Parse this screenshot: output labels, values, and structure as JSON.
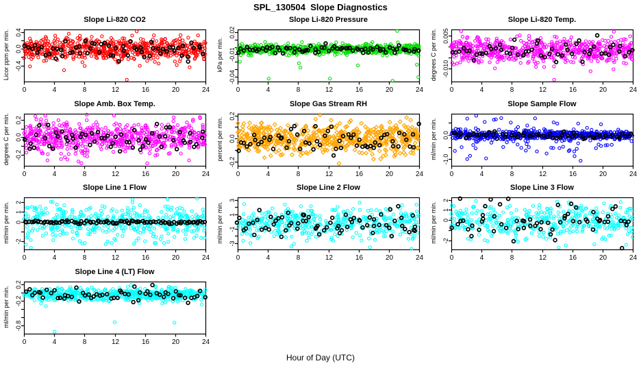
{
  "page": {
    "title": "SPL_130504  Slope Diagnostics",
    "xlabel": "Hour of Day (UTC)",
    "background": "#FFFFFF",
    "text_color": "#000000"
  },
  "axes_common": {
    "x_min": 0,
    "x_max": 24,
    "x_ticks": [
      0,
      4,
      8,
      12,
      16,
      20,
      24
    ],
    "grid": false,
    "box": true
  },
  "chart_data": [
    {
      "type": "scatter",
      "row": 0,
      "col": 0,
      "seed": 101,
      "title": "Slope Li-820 CO2",
      "ylabel": "Licor ppm per min.",
      "ylim": [
        -0.78,
        0.46
      ],
      "yticks": [
        {
          "v": 0.4,
          "label": "0.4"
        },
        {
          "v": 0.2,
          "label": ""
        },
        {
          "v": 0.0,
          "label": "0.0"
        },
        {
          "v": -0.2,
          "label": ""
        },
        {
          "v": -0.4,
          "label": "-0.4"
        }
      ],
      "series": [
        {
          "name": "samples",
          "marker": "circle",
          "color": "#FF0000",
          "n": 620,
          "y_mean": 0.0,
          "y_sd": 0.14,
          "x_dist": "uniform"
        },
        {
          "name": "overlay-black",
          "marker": "circle-bold",
          "color": "#000000",
          "n": 62,
          "y_mean": -0.01,
          "y_sd": 0.11,
          "x_dist": "even",
          "x_jitter": 0.4
        }
      ],
      "outliers": [
        {
          "x": 13.6,
          "y": -0.74
        },
        {
          "x": 5.3,
          "y": -0.51
        },
        {
          "x": 21.9,
          "y": -0.44
        },
        {
          "x": 0.8,
          "y": -0.42
        }
      ]
    },
    {
      "type": "scatter",
      "row": 0,
      "col": 1,
      "seed": 102,
      "title": "Slope Li-820 Pressure",
      "ylabel": "kPa per min.",
      "ylim": [
        -0.047,
        0.024
      ],
      "yticks": [
        {
          "v": 0.02,
          "label": "0.02"
        },
        {
          "v": 0.01,
          "label": ""
        },
        {
          "v": 0.0,
          "label": ""
        },
        {
          "v": -0.01,
          "label": "-0.01"
        },
        {
          "v": -0.02,
          "label": ""
        },
        {
          "v": -0.03,
          "label": ""
        },
        {
          "v": -0.04,
          "label": "-0.04"
        }
      ],
      "series": [
        {
          "name": "samples",
          "marker": "circle",
          "color": "#00DD00",
          "n": 600,
          "y_mean": -0.003,
          "y_sd": 0.0035,
          "x_dist": "uniform"
        },
        {
          "name": "overlay-black",
          "marker": "circle-bold",
          "color": "#000000",
          "n": 70,
          "y_mean": -0.003,
          "y_sd": 0.0028,
          "x_dist": "even",
          "x_jitter": 0.4
        }
      ],
      "outliers": [
        {
          "x": 0.3,
          "y": -0.02
        },
        {
          "x": 4.1,
          "y": -0.043
        },
        {
          "x": 8.1,
          "y": -0.022
        },
        {
          "x": 8.3,
          "y": -0.028
        },
        {
          "x": 12.2,
          "y": -0.043
        },
        {
          "x": 15.9,
          "y": -0.025
        },
        {
          "x": 20.5,
          "y": -0.046
        },
        {
          "x": 21.1,
          "y": 0.022
        },
        {
          "x": 23.7,
          "y": -0.024
        },
        {
          "x": 23.9,
          "y": -0.041
        }
      ]
    },
    {
      "type": "scatter",
      "row": 0,
      "col": 2,
      "seed": 103,
      "title": "Slope Li-820 Temp.",
      "ylabel": "degrees C per min.",
      "ylim": [
        -0.016,
        0.0078
      ],
      "yticks": [
        {
          "v": 0.005,
          "label": "0.005"
        },
        {
          "v": 0.0,
          "label": ""
        },
        {
          "v": -0.005,
          "label": ""
        },
        {
          "v": -0.01,
          "label": "-0.010"
        }
      ],
      "series": [
        {
          "name": "samples",
          "marker": "circle",
          "color": "#FF00FF",
          "n": 600,
          "y_mean": -0.0018,
          "y_sd": 0.0028,
          "x_dist": "uniform"
        },
        {
          "name": "overlay-black",
          "marker": "circle-bold",
          "color": "#000000",
          "n": 55,
          "y_mean": -0.0018,
          "y_sd": 0.0024,
          "x_dist": "even",
          "x_jitter": 0.4
        }
      ],
      "outliers": [
        {
          "x": 13.6,
          "y": -0.0152
        },
        {
          "x": 1.3,
          "y": 0.007
        },
        {
          "x": 21.5,
          "y": 0.0068
        }
      ]
    },
    {
      "type": "scatter",
      "row": 1,
      "col": 0,
      "seed": 104,
      "title": "Slope Amb. Box Temp.",
      "ylabel": "degrees C per min.",
      "ylim": [
        -0.33,
        0.27
      ],
      "yticks": [
        {
          "v": 0.2,
          "label": "0.2"
        },
        {
          "v": 0.1,
          "label": ""
        },
        {
          "v": 0.0,
          "label": "0.0"
        },
        {
          "v": -0.1,
          "label": ""
        },
        {
          "v": -0.2,
          "label": "-0.2"
        }
      ],
      "series": [
        {
          "name": "samples",
          "marker": "circle",
          "color": "#FF00FF",
          "n": 620,
          "y_mean": -0.01,
          "y_sd": 0.09,
          "x_dist": "uniform"
        },
        {
          "name": "overlay-black",
          "marker": "circle-bold",
          "color": "#000000",
          "n": 60,
          "y_mean": -0.02,
          "y_sd": 0.08,
          "x_dist": "even",
          "x_jitter": 0.4
        }
      ],
      "outliers": [
        {
          "x": 7.2,
          "y": -0.28
        },
        {
          "x": 7.6,
          "y": -0.3
        },
        {
          "x": 16.3,
          "y": -0.3
        },
        {
          "x": 8.3,
          "y": 0.26
        },
        {
          "x": 11.9,
          "y": 0.25
        },
        {
          "x": 1.5,
          "y": 0.24
        },
        {
          "x": 23.3,
          "y": 0.22
        }
      ]
    },
    {
      "type": "scatter",
      "row": 1,
      "col": 1,
      "seed": 105,
      "title": "Slope Gas Stream RH",
      "ylabel": "percent per min.",
      "ylim": [
        -0.235,
        0.215
      ],
      "yticks": [
        {
          "v": 0.2,
          "label": "0.2"
        },
        {
          "v": 0.1,
          "label": ""
        },
        {
          "v": 0.0,
          "label": "0.0"
        },
        {
          "v": -0.1,
          "label": ""
        },
        {
          "v": -0.2,
          "label": "-0.2"
        }
      ],
      "series": [
        {
          "name": "samples",
          "marker": "diamond",
          "color": "#FFA500",
          "n": 560,
          "y_mean": 0.0,
          "y_sd": 0.065,
          "x_dist": "uniform"
        },
        {
          "name": "overlay-black",
          "marker": "circle-bold",
          "color": "#000000",
          "n": 62,
          "y_mean": -0.01,
          "y_sd": 0.06,
          "x_dist": "even",
          "x_jitter": 0.4
        }
      ],
      "outliers": [
        {
          "x": 10.9,
          "y": 0.205
        },
        {
          "x": 13.4,
          "y": -0.215
        }
      ]
    },
    {
      "type": "scatter",
      "row": 1,
      "col": 2,
      "seed": 106,
      "title": "Slope Sample Flow",
      "ylabel": "ml/min per min.",
      "ylim": [
        -1.28,
        0.88
      ],
      "yticks": [
        {
          "v": 0.5,
          "label": ""
        },
        {
          "v": 0.0,
          "label": "0.0"
        },
        {
          "v": -0.5,
          "label": ""
        },
        {
          "v": -1.0,
          "label": "-1.0"
        }
      ],
      "series": [
        {
          "name": "samples",
          "marker": "circle",
          "color": "#0000FF",
          "n": 520,
          "y_mean": 0.0,
          "y_sd": 0.09,
          "x_dist": "uniform"
        },
        {
          "name": "samples-spread",
          "marker": "circle",
          "color": "#0000FF",
          "n": 90,
          "y_mean": -0.12,
          "y_sd": 0.38,
          "x_dist": "uniform"
        },
        {
          "name": "overlay-black",
          "marker": "circle-bold",
          "color": "#000000",
          "n": 60,
          "y_mean": -0.02,
          "y_sd": 0.07,
          "x_dist": "even",
          "x_jitter": 0.4
        }
      ],
      "outliers": [
        {
          "x": 3.3,
          "y": 0.8
        },
        {
          "x": 2.1,
          "y": -1.0
        },
        {
          "x": 4.6,
          "y": -0.97
        },
        {
          "x": 16.3,
          "y": -0.88
        },
        {
          "x": 17.1,
          "y": -1.07
        },
        {
          "x": 12.6,
          "y": -0.77
        },
        {
          "x": 5.9,
          "y": 0.65
        },
        {
          "x": 6.6,
          "y": 0.7
        }
      ]
    },
    {
      "type": "scatter",
      "row": 2,
      "col": 0,
      "seed": 107,
      "title": "Slope Line 1 Flow",
      "ylabel": "ml/min per min.",
      "ylim": [
        -2.83,
        2.5
      ],
      "yticks": [
        {
          "v": 2,
          "label": "2"
        },
        {
          "v": 1,
          "label": "1"
        },
        {
          "v": 0,
          "label": "0"
        },
        {
          "v": -1,
          "label": ""
        },
        {
          "v": -2,
          "label": "-2"
        }
      ],
      "series": [
        {
          "name": "samples",
          "marker": "circle",
          "color": "#00FFFF",
          "n": 430,
          "y_mean": 0.0,
          "y_sd": 0.95,
          "x_dist": "uniform"
        },
        {
          "name": "overlay-black",
          "marker": "circle-bold",
          "color": "#000000",
          "n": 90,
          "y_mean": -0.05,
          "y_sd": 0.09,
          "x_dist": "even",
          "x_jitter": 0.3
        }
      ],
      "outliers": []
    },
    {
      "type": "scatter",
      "row": 2,
      "col": 1,
      "seed": 108,
      "title": "Slope Line 2 Flow",
      "ylabel": "ml/min per min.",
      "ylim": [
        -3.9,
        3.35
      ],
      "yticks": [
        {
          "v": 3,
          "label": "3"
        },
        {
          "v": 2,
          "label": ""
        },
        {
          "v": 1,
          "label": "1"
        },
        {
          "v": 0,
          "label": ""
        },
        {
          "v": -1,
          "label": "-1"
        },
        {
          "v": -2,
          "label": ""
        },
        {
          "v": -3,
          "label": "-3"
        }
      ],
      "series": [
        {
          "name": "samples",
          "marker": "circle",
          "color": "#00FFFF",
          "n": 430,
          "y_mean": -0.2,
          "y_sd": 1.05,
          "x_dist": "uniform"
        },
        {
          "name": "overlay-black",
          "marker": "circle-bold",
          "color": "#000000",
          "n": 70,
          "y_mean": -0.2,
          "y_sd": 1.0,
          "x_dist": "even",
          "x_jitter": 0.8
        }
      ],
      "outliers": [
        {
          "x": 17.5,
          "y": -3.6
        },
        {
          "x": 23.0,
          "y": -3.8
        }
      ]
    },
    {
      "type": "scatter",
      "row": 2,
      "col": 2,
      "seed": 109,
      "title": "Slope Line 3 Flow",
      "ylabel": "ml/min per min.",
      "ylim": [
        -2.9,
        2.25
      ],
      "yticks": [
        {
          "v": 2,
          "label": "2"
        },
        {
          "v": 1,
          "label": "1"
        },
        {
          "v": 0,
          "label": "0"
        },
        {
          "v": -1,
          "label": ""
        },
        {
          "v": -2,
          "label": "-2"
        }
      ],
      "series": [
        {
          "name": "samples",
          "marker": "circle",
          "color": "#00FFFF",
          "n": 400,
          "y_mean": -0.1,
          "y_sd": 0.9,
          "x_dist": "uniform"
        },
        {
          "name": "overlay-black",
          "marker": "circle-bold",
          "color": "#000000",
          "n": 62,
          "y_mean": -0.15,
          "y_sd": 0.85,
          "x_dist": "even",
          "x_jitter": 0.8
        }
      ],
      "outliers": []
    },
    {
      "type": "scatter",
      "row": 3,
      "col": 0,
      "seed": 110,
      "title": "Slope Line 4 (LT) Flow",
      "ylabel": "ml/min per min.",
      "ylim": [
        -1.0,
        0.27
      ],
      "yticks": [
        {
          "v": 0.2,
          "label": "0.2"
        },
        {
          "v": 0.0,
          "label": ""
        },
        {
          "v": -0.2,
          "label": "-0.2"
        },
        {
          "v": -0.4,
          "label": ""
        },
        {
          "v": -0.6,
          "label": ""
        },
        {
          "v": -0.8,
          "label": "-0.8"
        }
      ],
      "series": [
        {
          "name": "samples",
          "marker": "circle",
          "color": "#00FFFF",
          "n": 520,
          "y_mean": -0.05,
          "y_sd": 0.08,
          "x_dist": "uniform"
        },
        {
          "name": "overlay-black",
          "marker": "circle-bold",
          "color": "#000000",
          "n": 58,
          "y_mean": -0.05,
          "y_sd": 0.09,
          "x_dist": "even",
          "x_jitter": 0.4
        }
      ],
      "outliers": [
        {
          "x": 4.05,
          "y": -0.95
        },
        {
          "x": 12.0,
          "y": -0.72
        },
        {
          "x": 19.9,
          "y": -0.73
        },
        {
          "x": 2.9,
          "y": -0.33
        }
      ]
    }
  ]
}
